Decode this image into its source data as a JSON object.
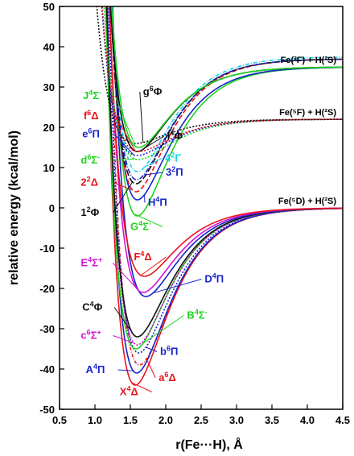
{
  "chart_data": {
    "type": "line",
    "xlabel": "r(Fe···H), Å",
    "ylabel": "relative energy (kcal/mol)",
    "xlim": [
      0.5,
      4.5
    ],
    "ylim": [
      -50,
      50
    ],
    "x_ticks": [
      "0.5",
      "1.0",
      "1.5",
      "2.0",
      "2.5",
      "3.0",
      "3.5",
      "4.0",
      "4.5"
    ],
    "y_ticks": [
      "-50",
      "-40",
      "-30",
      "-20",
      "-10",
      "0",
      "10",
      "20",
      "30",
      "40",
      "50"
    ],
    "asymptote_labels": [
      {
        "text": "Fe(³F) + H(²S)",
        "y": 35
      },
      {
        "text": "Fe(⁵F) + H(²S)",
        "y": 22
      },
      {
        "text": "Fe(⁵D) + H(²S)",
        "y": 0
      }
    ],
    "series": [
      {
        "name": "X⁴Δ",
        "term": "X",
        "mult": "4",
        "sym": "Δ",
        "color": "#e8151b",
        "dash": "",
        "re": 1.57,
        "de": -44,
        "asym": 0,
        "lx": 1.35,
        "ly": -46.5
      },
      {
        "name": "a⁶Δ",
        "term": "a",
        "mult": "6",
        "sym": "Δ",
        "color": "#e8151b",
        "dash": "4,2,1,2",
        "re": 1.63,
        "de": -39,
        "asym": 0,
        "lx": 1.9,
        "ly": -43
      },
      {
        "name": "A⁴Π",
        "term": "A",
        "mult": "4",
        "sym": "Π",
        "color": "#1724c9",
        "dash": "",
        "re": 1.59,
        "de": -41,
        "asym": 0,
        "lx": 0.87,
        "ly": -41
      },
      {
        "name": "b⁶Π",
        "term": "b",
        "mult": "6",
        "sym": "Π",
        "color": "#1724c9",
        "dash": "2,2",
        "re": 1.62,
        "de": -36,
        "asym": 0,
        "lx": 1.92,
        "ly": -36.5
      },
      {
        "name": "B⁴Σ⁻",
        "term": "B",
        "mult": "4",
        "sym": "Σ",
        "tail": "-",
        "color": "#1fd41f",
        "dash": "",
        "re": 1.58,
        "de": -35,
        "asym": 0,
        "lx": 2.3,
        "ly": -27.5
      },
      {
        "name": "c⁶Σ⁺",
        "term": "c",
        "mult": "6",
        "sym": "Σ",
        "tail": "+",
        "color": "#d413d4",
        "dash": "2,2",
        "re": 1.6,
        "de": -34,
        "asym": 0,
        "lx": 0.8,
        "ly": -32.5
      },
      {
        "name": "C⁴Φ",
        "term": "C",
        "mult": "4",
        "sym": "Φ",
        "color": "#111111",
        "dash": "",
        "re": 1.6,
        "de": -32,
        "asym": 0,
        "lx": 0.82,
        "ly": -25.5
      },
      {
        "name": "D⁴Π",
        "term": "D",
        "mult": "4",
        "sym": "Π",
        "color": "#1724c9",
        "dash": "",
        "re": 1.72,
        "de": -22,
        "asym": 0,
        "lx": 2.55,
        "ly": -18.5
      },
      {
        "name": "E⁴Σ⁺",
        "term": "E",
        "mult": "4",
        "sym": "Σ",
        "tail": "+",
        "color": "#d413d4",
        "dash": "",
        "re": 1.68,
        "de": -21,
        "asym": 0,
        "lx": 0.8,
        "ly": -14.5
      },
      {
        "name": "F⁴Δ",
        "term": "F",
        "mult": "4",
        "sym": "Δ",
        "color": "#e8151b",
        "dash": "",
        "re": 1.7,
        "de": -17,
        "asym": 0,
        "lx": 1.55,
        "ly": -13
      },
      {
        "name": "G⁴Σ⁻",
        "term": "G",
        "mult": "4",
        "sym": "Σ",
        "tail": "-",
        "color": "#1fd41f",
        "dash": "",
        "re": 1.6,
        "de": -2,
        "asym": 35,
        "lx": 1.5,
        "ly": -5.5
      },
      {
        "name": "H⁴Π",
        "term": "H",
        "mult": "4",
        "sym": "Π",
        "color": "#1724c9",
        "dash": "",
        "re": 1.6,
        "de": 2,
        "asym": 35,
        "lx": 1.75,
        "ly": 0.5
      },
      {
        "name": "2²Δ",
        "term": "2",
        "mult": "2",
        "sym": "Δ",
        "color": "#e8151b",
        "dash": "6,3",
        "re": 1.58,
        "de": 4,
        "asym": 37,
        "lx": 0.8,
        "ly": 5.5
      },
      {
        "name": "1²Φ",
        "term": "1",
        "mult": "2",
        "sym": "Φ",
        "color": "#111111",
        "dash": "8,3",
        "re": 1.58,
        "de": 6,
        "asym": 37,
        "lx": 0.8,
        "ly": -2
      },
      {
        "name": "3²Π",
        "term": "3",
        "mult": "2",
        "sym": "Π",
        "color": "#1724c9",
        "dash": "6,2,1,2",
        "re": 1.59,
        "de": 7,
        "asym": 37,
        "lx": 2.0,
        "ly": 8
      },
      {
        "name": "4²Γ",
        "term": "4",
        "mult": "2",
        "sym": "Γ",
        "color": "#18d0e8",
        "dash": "5,2,1,2",
        "re": 1.6,
        "de": 9,
        "asym": 37.5,
        "lx": 1.99,
        "ly": 11.5
      },
      {
        "name": "d⁶Σ⁻",
        "term": "d",
        "mult": "6",
        "sym": "Σ",
        "tail": "-",
        "color": "#1fd41f",
        "dash": "2,2",
        "re": 1.62,
        "de": 12,
        "asym": 22,
        "lx": 0.8,
        "ly": 11
      },
      {
        "name": "I⁴Φ",
        "term": "I",
        "mult": "4",
        "sym": "Φ",
        "color": "#111111",
        "dash": "",
        "re": 1.6,
        "de": 14,
        "asym": 35,
        "lx": 2.02,
        "ly": 17
      },
      {
        "name": "e⁶Π",
        "term": "e",
        "mult": "6",
        "sym": "Π",
        "color": "#1724c9",
        "dash": "2,2",
        "re": 1.6,
        "de": 13,
        "asym": 22,
        "lx": 0.82,
        "ly": 17.5
      },
      {
        "name": "f⁶Δ",
        "term": "f",
        "mult": "6",
        "sym": "Δ",
        "color": "#e8151b",
        "dash": "2,2",
        "re": 1.62,
        "de": 14,
        "asym": 22,
        "lx": 0.84,
        "ly": 22
      },
      {
        "name": "g⁶Φ",
        "term": "g",
        "mult": "6",
        "sym": "Φ",
        "color": "#111111",
        "dash": "2,2",
        "re": 1.58,
        "de": 16,
        "asym": 22,
        "lx": 1.68,
        "ly": 28
      },
      {
        "name": "J⁴Σ⁻",
        "term": "J",
        "mult": "4",
        "sym": "Σ",
        "tail": "-",
        "color": "#1fd41f",
        "dash": "",
        "re": 1.62,
        "de": 15,
        "asym": 35,
        "lx": 0.83,
        "ly": 27
      }
    ]
  }
}
